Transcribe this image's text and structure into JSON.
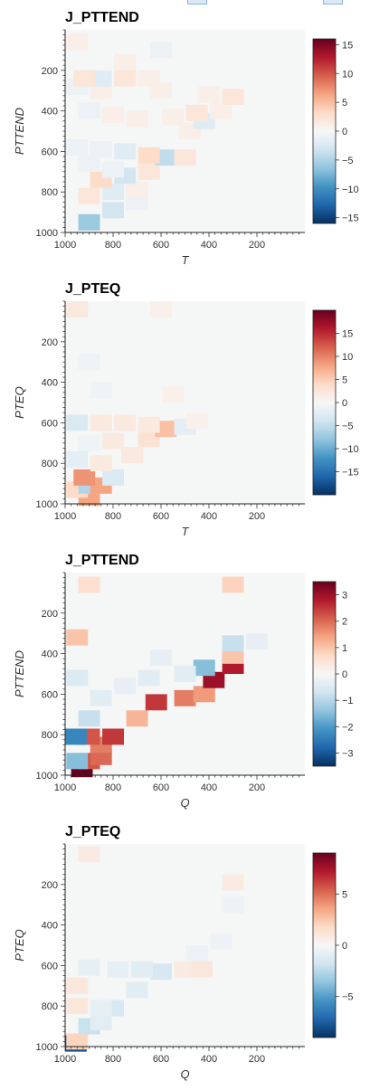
{
  "toolbar": {
    "icons": [
      "toolbar-tool-icon",
      "toolbar-tool-icon"
    ]
  },
  "chart_data": [
    {
      "type": "heatmap",
      "title": "J_PTTEND",
      "xlabel": "T",
      "ylabel": "PTTEND",
      "xlim": [
        1000,
        0
      ],
      "ylim": [
        1000,
        0
      ],
      "x_ticks": [
        "1000",
        "800",
        "600",
        "400",
        "200"
      ],
      "y_ticks": [
        "200",
        "400",
        "600",
        "800",
        "1000"
      ],
      "colorbar": {
        "min": -16,
        "max": 16,
        "ticks": [
          "15",
          "10",
          "5",
          "0",
          "−5",
          "−10",
          "−15"
        ]
      },
      "cells": [
        {
          "x": 900,
          "y": 950,
          "v": -6
        },
        {
          "x": 800,
          "y": 890,
          "v": -3
        },
        {
          "x": 700,
          "y": 850,
          "v": -1
        },
        {
          "x": 900,
          "y": 820,
          "v": 2
        },
        {
          "x": 800,
          "y": 800,
          "v": -2
        },
        {
          "x": 700,
          "y": 790,
          "v": 1
        },
        {
          "x": 850,
          "y": 740,
          "v": 3
        },
        {
          "x": 750,
          "y": 720,
          "v": -3
        },
        {
          "x": 650,
          "y": 700,
          "v": 2
        },
        {
          "x": 800,
          "y": 690,
          "v": -1
        },
        {
          "x": 900,
          "y": 660,
          "v": -1
        },
        {
          "x": 580,
          "y": 630,
          "v": -4
        },
        {
          "x": 650,
          "y": 620,
          "v": 3
        },
        {
          "x": 500,
          "y": 630,
          "v": 2
        },
        {
          "x": 750,
          "y": 600,
          "v": -2
        },
        {
          "x": 850,
          "y": 590,
          "v": -1
        },
        {
          "x": 950,
          "y": 580,
          "v": -1
        },
        {
          "x": 480,
          "y": 500,
          "v": 1
        },
        {
          "x": 420,
          "y": 450,
          "v": -2
        },
        {
          "x": 550,
          "y": 430,
          "v": 1
        },
        {
          "x": 450,
          "y": 410,
          "v": 2
        },
        {
          "x": 350,
          "y": 400,
          "v": 1
        },
        {
          "x": 700,
          "y": 440,
          "v": 1
        },
        {
          "x": 800,
          "y": 420,
          "v": 1
        },
        {
          "x": 900,
          "y": 400,
          "v": -1
        },
        {
          "x": 300,
          "y": 330,
          "v": 2
        },
        {
          "x": 400,
          "y": 320,
          "v": 1
        },
        {
          "x": 600,
          "y": 300,
          "v": 1
        },
        {
          "x": 850,
          "y": 300,
          "v": 1
        },
        {
          "x": 950,
          "y": 280,
          "v": -1
        },
        {
          "x": 850,
          "y": 240,
          "v": -2
        },
        {
          "x": 750,
          "y": 240,
          "v": 2
        },
        {
          "x": 650,
          "y": 240,
          "v": 1
        },
        {
          "x": 920,
          "y": 240,
          "v": 2
        },
        {
          "x": 750,
          "y": 160,
          "v": 1
        },
        {
          "x": 600,
          "y": 100,
          "v": -1
        },
        {
          "x": 950,
          "y": 60,
          "v": 1
        }
      ]
    },
    {
      "type": "heatmap",
      "title": "J_PTEQ",
      "xlabel": "T",
      "ylabel": "PTEQ",
      "xlim": [
        1000,
        0
      ],
      "ylim": [
        1000,
        0
      ],
      "x_ticks": [
        "1000",
        "800",
        "600",
        "400",
        "200"
      ],
      "y_ticks": [
        "200",
        "400",
        "600",
        "800",
        "1000"
      ],
      "colorbar": {
        "min": -20,
        "max": 20,
        "ticks": [
          "15",
          "10",
          "5",
          "0",
          "−5",
          "−10",
          "−15"
        ]
      },
      "cells": [
        {
          "x": 900,
          "y": 970,
          "v": 8
        },
        {
          "x": 950,
          "y": 930,
          "v": 4
        },
        {
          "x": 900,
          "y": 910,
          "v": -6
        },
        {
          "x": 850,
          "y": 910,
          "v": 8
        },
        {
          "x": 920,
          "y": 870,
          "v": 9
        },
        {
          "x": 800,
          "y": 870,
          "v": -3
        },
        {
          "x": 850,
          "y": 800,
          "v": 2
        },
        {
          "x": 950,
          "y": 780,
          "v": -2
        },
        {
          "x": 720,
          "y": 760,
          "v": 2
        },
        {
          "x": 900,
          "y": 700,
          "v": -1
        },
        {
          "x": 800,
          "y": 690,
          "v": 2
        },
        {
          "x": 650,
          "y": 680,
          "v": 3
        },
        {
          "x": 580,
          "y": 630,
          "v": 6
        },
        {
          "x": 500,
          "y": 620,
          "v": -2
        },
        {
          "x": 650,
          "y": 610,
          "v": 2
        },
        {
          "x": 750,
          "y": 600,
          "v": 2
        },
        {
          "x": 850,
          "y": 600,
          "v": 2
        },
        {
          "x": 950,
          "y": 600,
          "v": -3
        },
        {
          "x": 450,
          "y": 590,
          "v": 1
        },
        {
          "x": 550,
          "y": 460,
          "v": 1
        },
        {
          "x": 850,
          "y": 440,
          "v": -1
        },
        {
          "x": 900,
          "y": 300,
          "v": -1
        },
        {
          "x": 600,
          "y": 30,
          "v": 1
        },
        {
          "x": 950,
          "y": 30,
          "v": 2
        }
      ]
    },
    {
      "type": "heatmap",
      "title": "J_PTTEND",
      "xlabel": "Q",
      "ylabel": "PTTEND",
      "xlim": [
        1000,
        0
      ],
      "ylim": [
        1000,
        0
      ],
      "x_ticks": [
        "1000",
        "800",
        "600",
        "400",
        "200"
      ],
      "y_ticks": [
        "200",
        "400",
        "600",
        "800",
        "1000"
      ],
      "colorbar": {
        "min": -3.5,
        "max": 3.5,
        "ticks": [
          "3",
          "2",
          "1",
          "0",
          "−1",
          "−2",
          "−3"
        ]
      },
      "cells": [
        {
          "x": 930,
          "y": 970,
          "v": 3.5
        },
        {
          "x": 900,
          "y": 930,
          "v": 2.2
        },
        {
          "x": 850,
          "y": 910,
          "v": 2.0
        },
        {
          "x": 950,
          "y": 930,
          "v": -1.5
        },
        {
          "x": 850,
          "y": 850,
          "v": 1.8
        },
        {
          "x": 800,
          "y": 810,
          "v": 2.5
        },
        {
          "x": 900,
          "y": 810,
          "v": 2.2
        },
        {
          "x": 990,
          "y": 810,
          "v": -2.3
        },
        {
          "x": 900,
          "y": 720,
          "v": -0.8
        },
        {
          "x": 700,
          "y": 720,
          "v": 1.2
        },
        {
          "x": 620,
          "y": 640,
          "v": 2.5
        },
        {
          "x": 500,
          "y": 620,
          "v": 1.8
        },
        {
          "x": 420,
          "y": 600,
          "v": 1.5
        },
        {
          "x": 380,
          "y": 530,
          "v": 3.0
        },
        {
          "x": 420,
          "y": 470,
          "v": -1.5
        },
        {
          "x": 300,
          "y": 460,
          "v": 2.8
        },
        {
          "x": 300,
          "y": 410,
          "v": 1.0
        },
        {
          "x": 300,
          "y": 350,
          "v": -0.8
        },
        {
          "x": 200,
          "y": 340,
          "v": -0.3
        },
        {
          "x": 950,
          "y": 320,
          "v": 1.0
        },
        {
          "x": 950,
          "y": 520,
          "v": -0.5
        },
        {
          "x": 850,
          "y": 620,
          "v": -0.4
        },
        {
          "x": 650,
          "y": 520,
          "v": -0.4
        },
        {
          "x": 750,
          "y": 560,
          "v": -0.3
        },
        {
          "x": 500,
          "y": 500,
          "v": -0.4
        },
        {
          "x": 600,
          "y": 420,
          "v": -0.3
        },
        {
          "x": 300,
          "y": 60,
          "v": 0.8
        },
        {
          "x": 900,
          "y": 60,
          "v": 0.6
        }
      ]
    },
    {
      "type": "heatmap",
      "title": "J_PTEQ",
      "xlabel": "Q",
      "ylabel": "PTEQ",
      "xlim": [
        1000,
        0
      ],
      "ylim": [
        1000,
        0
      ],
      "x_ticks": [
        "1000",
        "800",
        "600",
        "400",
        "200"
      ],
      "y_ticks": [
        "200",
        "400",
        "600",
        "800",
        "1000"
      ],
      "colorbar": {
        "min": -9,
        "max": 9,
        "ticks": [
          "5",
          "0",
          "−5"
        ]
      },
      "cells": [
        {
          "x": 990,
          "y": 985,
          "v": -8
        },
        {
          "x": 950,
          "y": 975,
          "v": 2
        },
        {
          "x": 900,
          "y": 900,
          "v": -2
        },
        {
          "x": 850,
          "y": 880,
          "v": -1
        },
        {
          "x": 800,
          "y": 810,
          "v": -1.5
        },
        {
          "x": 850,
          "y": 810,
          "v": -0.8
        },
        {
          "x": 950,
          "y": 800,
          "v": 1
        },
        {
          "x": 700,
          "y": 720,
          "v": -1
        },
        {
          "x": 950,
          "y": 700,
          "v": 1
        },
        {
          "x": 600,
          "y": 630,
          "v": -1.5
        },
        {
          "x": 680,
          "y": 620,
          "v": -1
        },
        {
          "x": 500,
          "y": 620,
          "v": 0.8
        },
        {
          "x": 430,
          "y": 620,
          "v": 1
        },
        {
          "x": 780,
          "y": 620,
          "v": -0.8
        },
        {
          "x": 900,
          "y": 610,
          "v": -0.8
        },
        {
          "x": 450,
          "y": 540,
          "v": -0.5
        },
        {
          "x": 350,
          "y": 480,
          "v": -0.5
        },
        {
          "x": 300,
          "y": 300,
          "v": -0.5
        },
        {
          "x": 300,
          "y": 190,
          "v": 0.8
        },
        {
          "x": 900,
          "y": 50,
          "v": 0.8
        }
      ]
    }
  ]
}
